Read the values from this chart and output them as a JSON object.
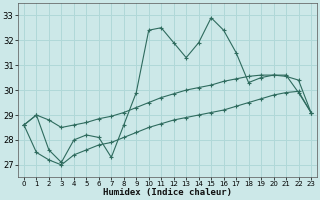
{
  "title": "",
  "xlabel": "Humidex (Indice chaleur)",
  "ylabel": "",
  "bg_color": "#cce8e8",
  "grid_color": "#b0d8d8",
  "line_color": "#2e6b5e",
  "ylim": [
    26.5,
    33.5
  ],
  "xlim": [
    -0.5,
    23.5
  ],
  "yticks": [
    27,
    28,
    29,
    30,
    31,
    32,
    33
  ],
  "xticks": [
    0,
    1,
    2,
    3,
    4,
    5,
    6,
    7,
    8,
    9,
    10,
    11,
    12,
    13,
    14,
    15,
    16,
    17,
    18,
    19,
    20,
    21,
    22,
    23
  ],
  "x": [
    0,
    1,
    2,
    3,
    4,
    5,
    6,
    7,
    8,
    9,
    10,
    11,
    12,
    13,
    14,
    15,
    16,
    17,
    18,
    19,
    20,
    21,
    22,
    23
  ],
  "y_main": [
    28.6,
    29.0,
    27.6,
    27.1,
    28.0,
    28.2,
    28.1,
    27.3,
    28.6,
    29.9,
    32.4,
    32.5,
    31.9,
    31.3,
    31.9,
    32.9,
    32.4,
    31.5,
    30.3,
    30.5,
    30.6,
    30.6,
    29.9,
    29.1
  ],
  "y_low": [
    28.6,
    27.5,
    27.2,
    27.0,
    27.4,
    27.6,
    27.8,
    27.9,
    28.1,
    28.3,
    28.5,
    28.65,
    28.8,
    28.9,
    29.0,
    29.1,
    29.2,
    29.35,
    29.5,
    29.65,
    29.8,
    29.9,
    29.95,
    29.1
  ],
  "y_high": [
    28.6,
    29.0,
    28.8,
    28.5,
    28.6,
    28.7,
    28.85,
    28.95,
    29.1,
    29.3,
    29.5,
    29.7,
    29.85,
    30.0,
    30.1,
    30.2,
    30.35,
    30.45,
    30.55,
    30.6,
    30.6,
    30.55,
    30.4,
    29.1
  ]
}
